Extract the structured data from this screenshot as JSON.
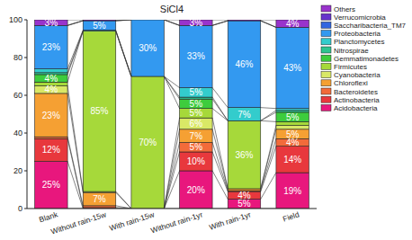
{
  "chart_data": {
    "type": "bar",
    "title": "SiCl4",
    "stacked": true,
    "data_labels": true,
    "legend": "right",
    "categories": [
      "Blank",
      "Without rain-15w",
      "With rain-15w",
      "Without rain-1yr",
      "With rain-1yr",
      "Field"
    ],
    "ylim": [
      0,
      100
    ],
    "yticks": [
      0,
      20,
      40,
      60,
      80,
      100
    ],
    "series": [
      {
        "name": "Acidobacteria",
        "color": "#e8177d",
        "values": [
          25,
          0,
          0,
          20,
          5,
          19
        ],
        "value_labels": [
          "25%",
          null,
          null,
          "20%",
          "5%",
          "19%"
        ]
      },
      {
        "name": "Actinobacteria",
        "color": "#e8383d",
        "values": [
          12,
          0.5,
          0,
          10,
          4,
          14
        ],
        "value_labels": [
          "12%",
          null,
          null,
          "10%",
          "4%",
          "14%"
        ]
      },
      {
        "name": "Bacteroidetes",
        "color": "#f26b3a",
        "values": [
          1,
          1,
          0,
          5,
          0.5,
          4
        ],
        "value_labels": [
          null,
          null,
          null,
          "5%",
          null,
          "4%"
        ]
      },
      {
        "name": "Chloroflexi",
        "color": "#f5a033",
        "values": [
          23,
          7,
          0,
          7,
          1,
          5
        ],
        "value_labels": [
          "23%",
          "7%",
          null,
          "7%",
          null,
          "5%"
        ]
      },
      {
        "name": "Cyanobacteria",
        "color": "#d9e866",
        "values": [
          4,
          0.5,
          0,
          6,
          0,
          2
        ],
        "value_labels": [
          "4%",
          null,
          null,
          "6%",
          null,
          null
        ]
      },
      {
        "name": "Firmicutes",
        "color": "#a6d93a",
        "values": [
          2,
          85,
          70,
          5,
          36,
          2
        ],
        "value_labels": [
          null,
          "85%",
          "70%",
          "5%",
          "36%",
          null
        ]
      },
      {
        "name": "Gemmatimonadetes",
        "color": "#3dcc3d",
        "values": [
          4,
          0,
          0,
          5,
          0,
          5
        ],
        "value_labels": [
          "4%",
          null,
          null,
          "5%",
          null,
          "5%"
        ]
      },
      {
        "name": "Nitrospirae",
        "color": "#2ec48f",
        "values": [
          1,
          0,
          0,
          1,
          0,
          1
        ],
        "value_labels": [
          null,
          null,
          null,
          null,
          null,
          null
        ]
      },
      {
        "name": "Planctomycetes",
        "color": "#33cccc",
        "values": [
          2,
          0.5,
          0,
          5,
          7,
          1
        ],
        "value_labels": [
          null,
          null,
          null,
          "5%",
          "7%",
          null
        ]
      },
      {
        "name": "Proteobacteria",
        "color": "#3399f0",
        "values": [
          23,
          5,
          30,
          33,
          46,
          43
        ],
        "value_labels": [
          "23%",
          "5%",
          "30%",
          "33%",
          "46%",
          "43%"
        ]
      },
      {
        "name": "Saccharibacteria_TM7",
        "color": "#3366e0",
        "values": [
          0,
          0,
          0,
          0,
          0,
          0
        ],
        "value_labels": [
          null,
          null,
          null,
          null,
          null,
          null
        ]
      },
      {
        "name": "Verrucomicrobia",
        "color": "#6633cc",
        "values": [
          0,
          0,
          0,
          0,
          0,
          0
        ],
        "value_labels": [
          null,
          null,
          null,
          null,
          null,
          null
        ]
      },
      {
        "name": "Others",
        "color": "#9933cc",
        "values": [
          3,
          0.5,
          0,
          3,
          0.5,
          4
        ],
        "value_labels": [
          "3%",
          null,
          null,
          "3%",
          null,
          "4%"
        ]
      }
    ]
  }
}
